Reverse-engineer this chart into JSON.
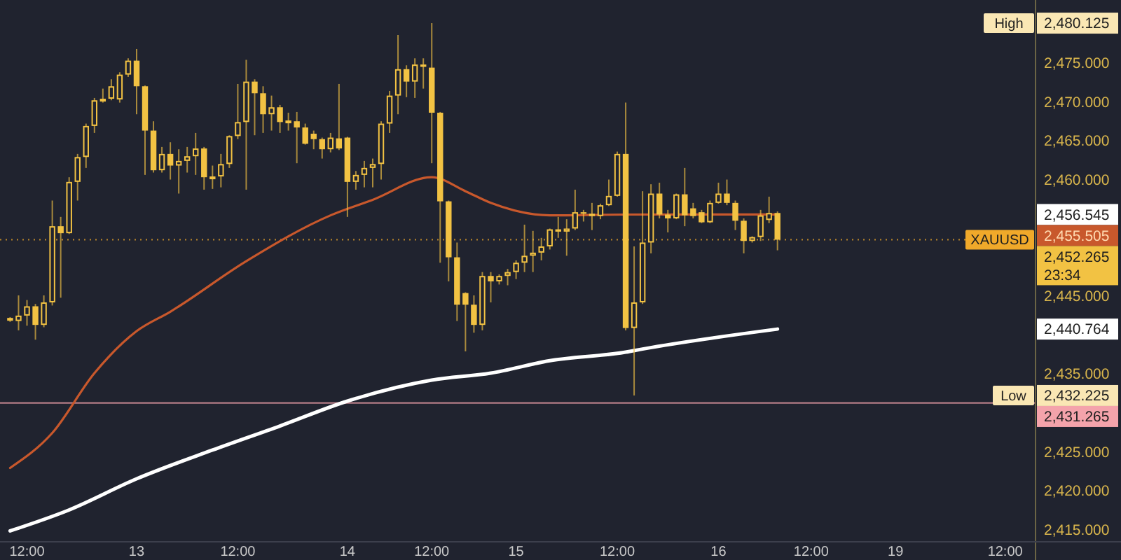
{
  "chart_data": {
    "type": "candlestick",
    "color": "#f2c243",
    "categories": [
      null,
      null,
      "12:00",
      null,
      null,
      null,
      null,
      null,
      null,
      null,
      null,
      null,
      null,
      null,
      null,
      "13",
      null,
      null,
      null,
      null,
      null,
      null,
      null,
      null,
      null,
      null,
      null,
      "12:00",
      null,
      null,
      null,
      null,
      null,
      null,
      null,
      null,
      null,
      null,
      null,
      null,
      "14",
      null,
      null,
      null,
      null,
      null,
      null,
      null,
      null,
      null,
      "12:00",
      null,
      null,
      null,
      null,
      null,
      null,
      null,
      null,
      null,
      "15",
      null,
      null,
      null,
      null,
      null,
      null,
      null,
      null,
      null,
      null,
      null,
      "12:00",
      null,
      null,
      null,
      null,
      null,
      null,
      null,
      null,
      null,
      null,
      null,
      "16",
      null,
      null,
      null,
      null,
      null,
      null,
      null,
      null,
      null,
      null,
      "12:00",
      null,
      null,
      null,
      null,
      null,
      null,
      null,
      null,
      null,
      "19",
      null,
      null,
      null,
      null,
      null,
      null,
      null,
      null,
      null,
      null,
      null,
      null,
      "12:00",
      null,
      null,
      null
    ],
    "ohlc": [
      [
        2442.0,
        2442.3,
        2441.7,
        2442.2
      ],
      [
        2441.8,
        2445.1,
        2440.6,
        2442.5
      ],
      [
        2442.5,
        2444.5,
        2441.2,
        2443.7
      ],
      [
        2443.7,
        2444.0,
        2439.4,
        2441.3
      ],
      [
        2441.3,
        2445.1,
        2441.0,
        2444.2
      ],
      [
        2444.2,
        2457.3,
        2443.8,
        2454.0
      ],
      [
        2454.0,
        2455.2,
        2444.8,
        2453.1
      ],
      [
        2453.1,
        2460.3,
        2453.0,
        2459.7
      ],
      [
        2459.7,
        2463.3,
        2457.3,
        2462.9
      ],
      [
        2462.9,
        2467.2,
        2461.5,
        2466.9
      ],
      [
        2466.9,
        2470.5,
        2466.0,
        2470.2
      ],
      [
        2470.2,
        2471.7,
        2469.9,
        2470.4
      ],
      [
        2470.4,
        2472.9,
        2470.2,
        2472.0
      ],
      [
        2470.3,
        2473.8,
        2469.9,
        2473.5
      ],
      [
        2473.5,
        2475.6,
        2473.2,
        2475.3
      ],
      [
        2475.3,
        2476.8,
        2468.4,
        2472.0
      ],
      [
        2472.0,
        2472.1,
        2460.6,
        2466.3
      ],
      [
        2466.3,
        2467.5,
        2460.9,
        2461.2
      ],
      [
        2461.2,
        2464.2,
        2460.9,
        2463.3
      ],
      [
        2463.3,
        2464.8,
        2460.0,
        2461.8
      ],
      [
        2461.8,
        2463.9,
        2458.2,
        2462.4
      ],
      [
        2462.4,
        2464.2,
        2460.9,
        2463.0
      ],
      [
        2463.0,
        2466.0,
        2460.6,
        2464.0
      ],
      [
        2464.0,
        2464.2,
        2458.7,
        2460.3
      ],
      [
        2460.3,
        2461.8,
        2458.8,
        2460.4
      ],
      [
        2460.4,
        2463.3,
        2459.0,
        2462.0
      ],
      [
        2462.0,
        2465.7,
        2461.5,
        2465.6
      ],
      [
        2465.6,
        2472.3,
        2465.2,
        2467.4
      ],
      [
        2467.4,
        2475.4,
        2458.7,
        2472.6
      ],
      [
        2472.6,
        2472.9,
        2465.7,
        2471.1
      ],
      [
        2471.1,
        2472.0,
        2466.0,
        2468.4
      ],
      [
        2468.4,
        2470.8,
        2466.3,
        2469.3
      ],
      [
        2469.3,
        2469.6,
        2466.0,
        2467.4
      ],
      [
        2467.4,
        2468.6,
        2466.3,
        2467.6
      ],
      [
        2467.5,
        2468.7,
        2462.1,
        2466.7
      ],
      [
        2466.7,
        2467.2,
        2464.5,
        2464.6
      ],
      [
        2465.9,
        2466.3,
        2463.9,
        2465.2
      ],
      [
        2465.2,
        2465.4,
        2462.7,
        2463.9
      ],
      [
        2463.9,
        2466.0,
        2463.5,
        2465.4
      ],
      [
        2465.3,
        2472.3,
        2463.8,
        2464.0
      ],
      [
        2465.4,
        2465.5,
        2455.2,
        2459.7
      ],
      [
        2459.7,
        2461.1,
        2458.7,
        2460.6
      ],
      [
        2460.6,
        2462.4,
        2459.0,
        2461.5
      ],
      [
        2461.5,
        2462.7,
        2459.0,
        2462.0
      ],
      [
        2462.0,
        2467.5,
        2460.0,
        2467.2
      ],
      [
        2467.2,
        2471.4,
        2466.0,
        2470.8
      ],
      [
        2470.8,
        2478.6,
        2468.4,
        2474.2
      ],
      [
        2474.2,
        2474.7,
        2470.6,
        2472.6
      ],
      [
        2472.6,
        2475.6,
        2470.5,
        2474.8
      ],
      [
        2474.8,
        2475.6,
        2471.7,
        2474.5
      ],
      [
        2474.4,
        2480.125,
        2462.1,
        2468.6
      ],
      [
        2468.6,
        2468.7,
        2449.3,
        2457.2
      ],
      [
        2457.2,
        2457.3,
        2446.9,
        2450.0
      ],
      [
        2450.0,
        2451.9,
        2441.8,
        2443.9
      ],
      [
        2445.4,
        2445.5,
        2437.9,
        2443.9
      ],
      [
        2443.9,
        2445.1,
        2440.3,
        2441.3
      ],
      [
        2441.3,
        2448.1,
        2440.6,
        2447.6
      ],
      [
        2447.6,
        2448.1,
        2444.2,
        2446.9
      ],
      [
        2446.9,
        2447.8,
        2446.5,
        2447.6
      ],
      [
        2447.6,
        2448.5,
        2446.4,
        2448.1
      ],
      [
        2448.1,
        2449.6,
        2447.2,
        2449.3
      ],
      [
        2449.3,
        2454.2,
        2448.1,
        2450.2
      ],
      [
        2450.2,
        2453.4,
        2448.1,
        2450.6
      ],
      [
        2450.6,
        2452.5,
        2449.6,
        2451.4
      ],
      [
        2451.4,
        2453.7,
        2451.0,
        2453.6
      ],
      [
        2453.6,
        2455.2,
        2452.5,
        2453.3
      ],
      [
        2453.3,
        2454.9,
        2450.2,
        2453.7
      ],
      [
        2453.7,
        2458.7,
        2453.5,
        2455.8
      ],
      [
        2455.8,
        2456.1,
        2454.6,
        2455.6
      ],
      [
        2455.6,
        2457.0,
        2453.5,
        2455.3
      ],
      [
        2455.3,
        2456.9,
        2454.9,
        2456.7
      ],
      [
        2456.7,
        2460.0,
        2456.6,
        2457.9
      ],
      [
        2457.9,
        2463.6,
        2457.8,
        2463.3
      ],
      [
        2463.3,
        2469.9,
        2440.6,
        2440.9
      ],
      [
        2440.9,
        2451.4,
        2432.225,
        2444.2
      ],
      [
        2444.2,
        2458.5,
        2444.0,
        2451.9
      ],
      [
        2451.9,
        2459.4,
        2450.5,
        2458.2
      ],
      [
        2458.2,
        2459.6,
        2455.0,
        2455.5
      ],
      [
        2455.5,
        2456.1,
        2453.2,
        2455.0
      ],
      [
        2455.0,
        2458.2,
        2454.9,
        2458.1
      ],
      [
        2458.1,
        2461.5,
        2454.0,
        2455.4
      ],
      [
        2456.3,
        2457.0,
        2455.0,
        2455.3
      ],
      [
        2455.8,
        2456.1,
        2454.4,
        2454.5
      ],
      [
        2454.5,
        2457.3,
        2454.4,
        2457.0
      ],
      [
        2457.0,
        2459.6,
        2456.9,
        2458.2
      ],
      [
        2458.2,
        2460.0,
        2456.7,
        2457.0
      ],
      [
        2457.0,
        2457.3,
        2453.5,
        2454.7
      ],
      [
        2454.7,
        2455.0,
        2450.5,
        2452.1
      ],
      [
        2452.1,
        2452.7,
        2451.9,
        2452.6
      ],
      [
        2452.6,
        2456.1,
        2452.1,
        2455.4
      ],
      [
        2454.8,
        2457.8,
        2454.4,
        2455.7
      ],
      [
        2455.7,
        2455.9,
        2450.9,
        2452.265
      ],
      null,
      null,
      null,
      null,
      null,
      null,
      null,
      null,
      null,
      null,
      null,
      null,
      null,
      null,
      null,
      null,
      null,
      null,
      null,
      null,
      null,
      null,
      null,
      null,
      null,
      null,
      null,
      null,
      null,
      null
    ],
    "series": [
      {
        "type": "line",
        "color": "#c8582c",
        "values": [
          2422.9,
          null,
          null,
          null,
          null,
          2427.4,
          null,
          null,
          null,
          null,
          2435.1,
          null,
          null,
          null,
          null,
          2440.5,
          null,
          null,
          null,
          2443.0,
          null,
          null,
          null,
          null,
          null,
          null,
          null,
          null,
          2449.5,
          null,
          null,
          null,
          null,
          null,
          null,
          null,
          null,
          null,
          2455.4,
          null,
          null,
          null,
          null,
          2457.4,
          null,
          null,
          null,
          null,
          null,
          null,
          2460.3,
          null,
          null,
          null,
          2458.5,
          null,
          null,
          2457.0,
          null,
          null,
          null,
          null,
          null,
          null,
          2455.4,
          null,
          null,
          null,
          null,
          null,
          null,
          null,
          null,
          2455.5,
          null,
          null,
          null,
          null,
          null,
          null,
          null,
          null,
          null,
          null,
          null,
          null,
          null,
          null,
          null,
          null,
          null,
          2455.505,
          null,
          null,
          null,
          null,
          null,
          null,
          null,
          null,
          null,
          null,
          null,
          null,
          null,
          null,
          null,
          null,
          null,
          null,
          null,
          null,
          null,
          null,
          null,
          null,
          null,
          null,
          null,
          null,
          null,
          null
        ]
      },
      {
        "type": "line",
        "color": "#ffffff",
        "values": [
          2414.8,
          null,
          null,
          null,
          null,
          null,
          null,
          2417.5,
          null,
          null,
          null,
          null,
          null,
          null,
          null,
          2421.5,
          null,
          null,
          null,
          null,
          null,
          null,
          null,
          null,
          2425.2,
          null,
          null,
          null,
          null,
          null,
          null,
          null,
          2428.3,
          null,
          null,
          null,
          null,
          null,
          null,
          null,
          2431.5,
          null,
          null,
          null,
          null,
          null,
          null,
          null,
          null,
          null,
          2434.2,
          null,
          null,
          null,
          null,
          null,
          null,
          2435.1,
          null,
          null,
          null,
          null,
          null,
          null,
          2436.7,
          null,
          null,
          null,
          null,
          null,
          null,
          null,
          null,
          2437.8,
          null,
          2438.2,
          null,
          null,
          null,
          null,
          null,
          null,
          null,
          null,
          null,
          null,
          null,
          null,
          null,
          null,
          null,
          2440.764,
          null,
          null,
          null,
          null,
          null,
          null,
          null,
          null,
          null,
          null,
          null,
          null,
          null,
          null,
          null,
          null,
          null,
          null,
          null,
          null,
          null,
          null,
          null,
          null,
          null,
          null,
          null,
          null,
          null,
          null
        ]
      }
    ],
    "ylim": [
      2413.4,
      2483.1
    ],
    "yticks": [
      {
        "value": 2415,
        "label": "2,415.000"
      },
      {
        "value": 2420,
        "label": "2,420.000"
      },
      {
        "value": 2425,
        "label": "2,425.000"
      },
      {
        "value": 2435,
        "label": "2,435.000"
      },
      {
        "value": 2445,
        "label": "2,445.000"
      },
      {
        "value": 2460,
        "label": "2,460.000"
      },
      {
        "value": 2465,
        "label": "2,465.000"
      },
      {
        "value": 2470,
        "label": "2,470.000"
      },
      {
        "value": 2475,
        "label": "2,475.000"
      }
    ],
    "ref_lines": [
      {
        "axis": "y",
        "value": 2452.265,
        "label": "XAUUSD",
        "color": "#f0a92a",
        "line_style": "dotted"
      },
      {
        "axis": "y",
        "value": 2431.265,
        "label": "2,431.265",
        "color": "#f4a3ab",
        "line_style": "solid"
      }
    ],
    "annotations": [
      "High",
      "2,480.125",
      "2,456.545",
      "2,455.505",
      "2,452.265",
      "23:34",
      "2,440.764",
      "Low",
      "2,432.225"
    ]
  }
}
